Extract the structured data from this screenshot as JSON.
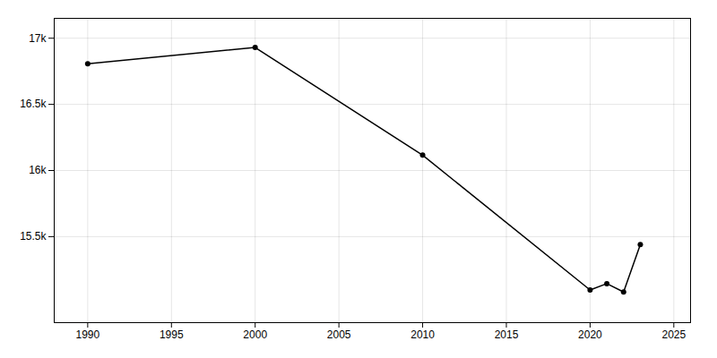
{
  "chart_data": {
    "type": "line",
    "x": [
      1990,
      2000,
      2010,
      2020,
      2021,
      2022,
      2023
    ],
    "values": [
      16807,
      16930,
      16116,
      15097,
      15145,
      15082,
      15441
    ],
    "marker": "circle",
    "xlim": [
      1988,
      2026
    ],
    "xticks": [
      1990,
      1995,
      2000,
      2005,
      2010,
      2015,
      2020,
      2025
    ],
    "ylim": [
      14850,
      17150
    ],
    "yticks": [
      {
        "value": 15500,
        "label": "15.5k"
      },
      {
        "value": 16000,
        "label": "16k"
      },
      {
        "value": 16500,
        "label": "16.5k"
      },
      {
        "value": 17000,
        "label": "17k"
      }
    ],
    "grid": true
  }
}
